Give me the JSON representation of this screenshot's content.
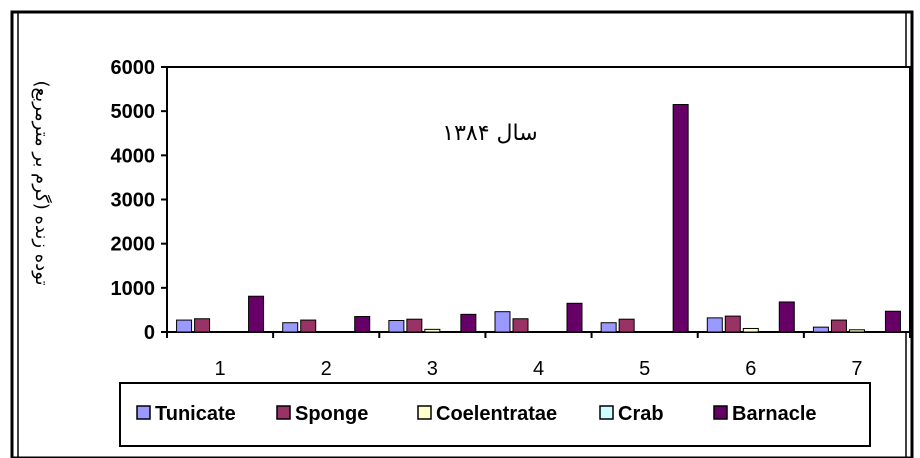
{
  "chart_data": {
    "type": "bar",
    "title": "",
    "annotation": "سال ۱۳۸۴",
    "ylabel": "توده زنده (گرم بر مترمربع)",
    "xlabel": "",
    "ylim": [
      0,
      6000
    ],
    "yticks": [
      "0",
      "1000",
      "2000",
      "3000",
      "4000",
      "5000",
      "6000"
    ],
    "categories": [
      "1",
      "2",
      "3",
      "4",
      "5",
      "6",
      "7"
    ],
    "legend_position": "bottom",
    "grid": false,
    "series": [
      {
        "name": "Tunicate",
        "color": "#9999ff",
        "values": [
          270,
          210,
          260,
          460,
          210,
          320,
          110
        ]
      },
      {
        "name": "Sponge",
        "color": "#993366",
        "values": [
          300,
          270,
          290,
          300,
          290,
          360,
          270
        ]
      },
      {
        "name": "Coelentratae",
        "color": "#ffffcc",
        "values": [
          0,
          0,
          60,
          0,
          0,
          80,
          50
        ]
      },
      {
        "name": "Crab",
        "color": "#ccffff",
        "values": [
          0,
          0,
          0,
          0,
          0,
          0,
          0
        ]
      },
      {
        "name": "Barnacle",
        "color": "#660066",
        "values": [
          810,
          350,
          400,
          650,
          5150,
          680,
          470
        ]
      }
    ]
  }
}
